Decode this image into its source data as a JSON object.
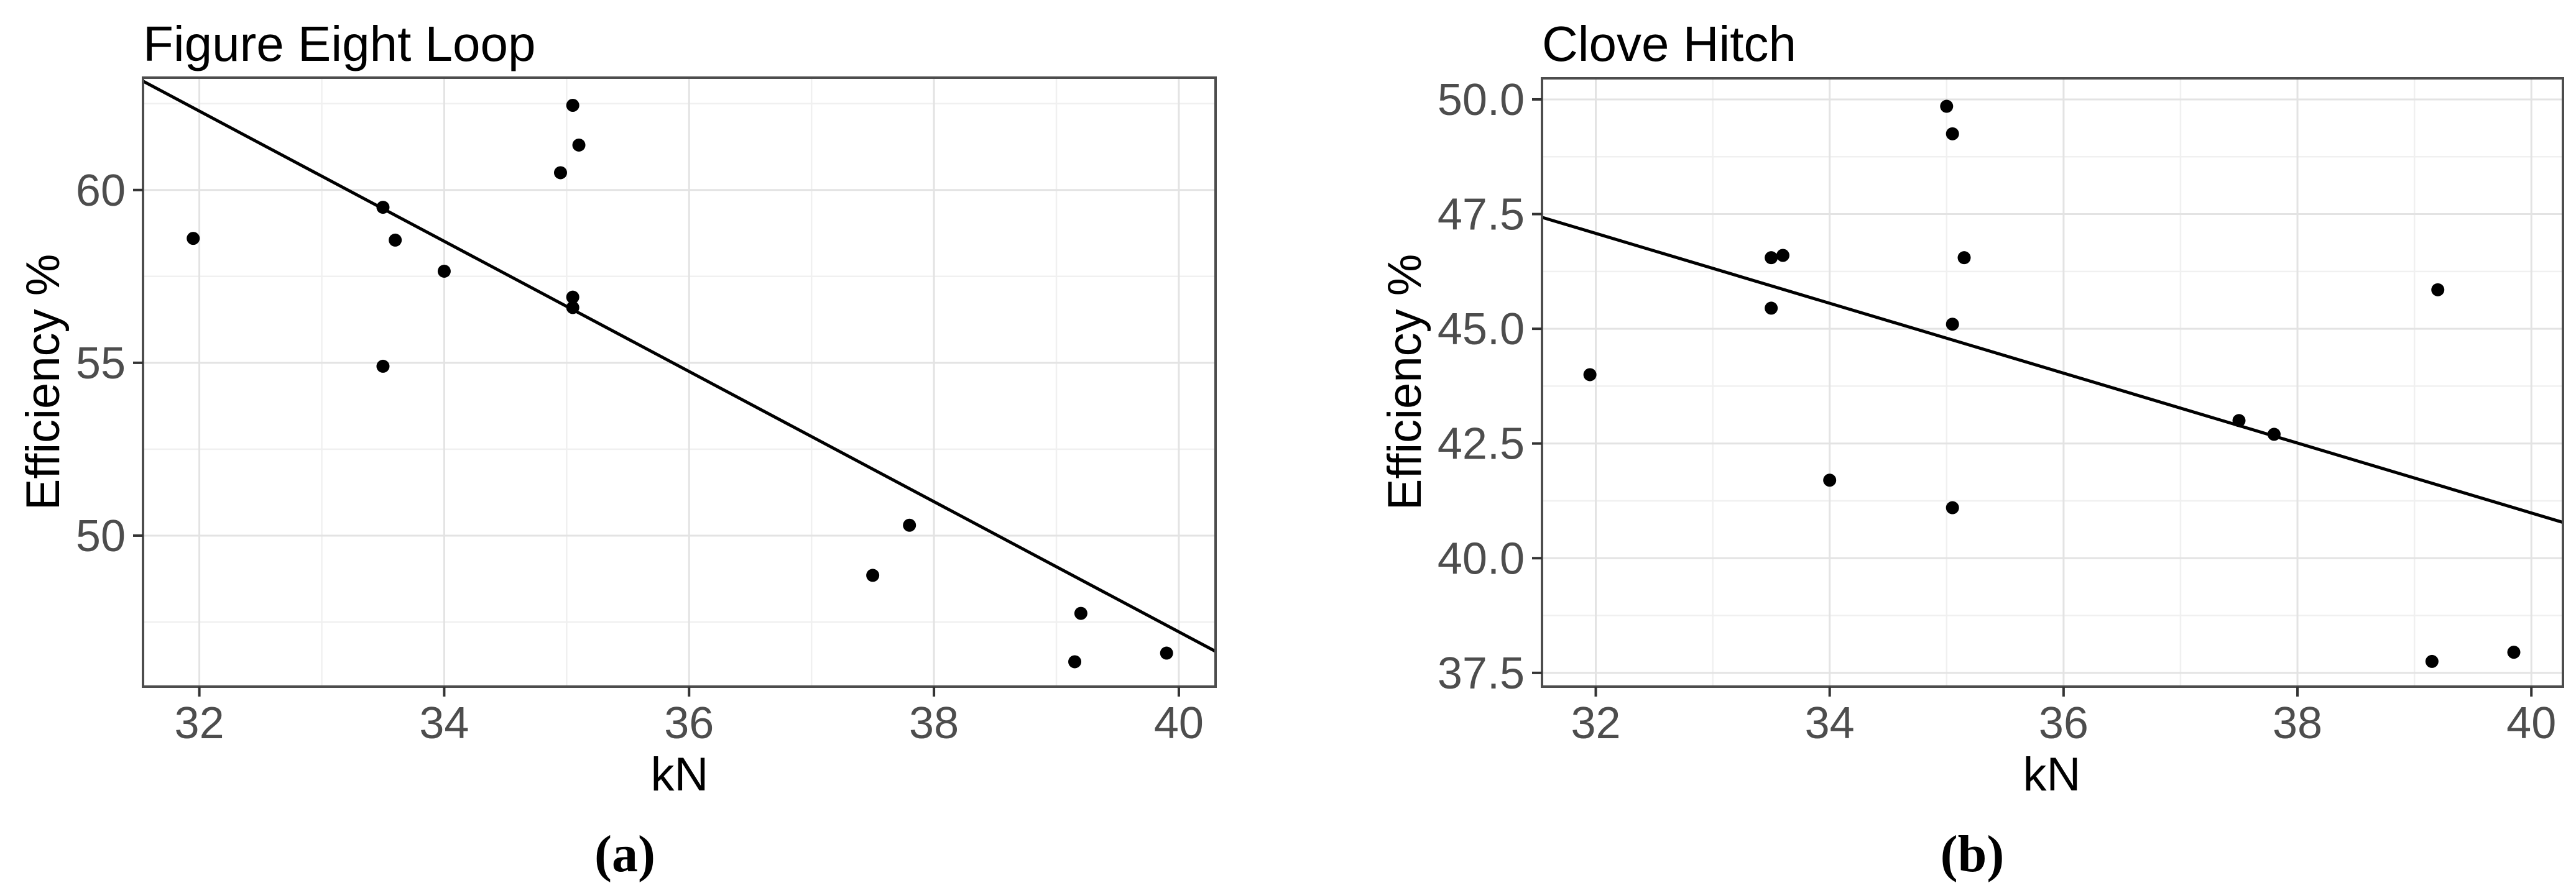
{
  "figure": {
    "background_color": "#ffffff",
    "colors": {
      "point": "#000000",
      "trend_line": "#000000",
      "panel_border": "#4d4d4d",
      "major_grid": "#e3e3e3",
      "minor_grid": "#f0f0f0",
      "tick_mark": "#333333",
      "tick_label": "#4d4d4d",
      "text": "#000000"
    }
  },
  "chart_data": [
    {
      "id": "a",
      "type": "scatter",
      "title": "Figure Eight Loop",
      "xlabel": "kN",
      "ylabel": "Efficiency %",
      "caption": "(a)",
      "xlim": [
        31.54,
        40.3
      ],
      "ylim": [
        45.63,
        63.25
      ],
      "grid": "major+minor",
      "legend": "none",
      "x_ticks": [
        {
          "v": 32,
          "label": "32"
        },
        {
          "v": 34,
          "label": "34"
        },
        {
          "v": 36,
          "label": "36"
        },
        {
          "v": 38,
          "label": "38"
        },
        {
          "v": 40,
          "label": "40"
        }
      ],
      "y_ticks": [
        {
          "v": 50,
          "label": "50"
        },
        {
          "v": 55,
          "label": "55"
        },
        {
          "v": 60,
          "label": "60"
        }
      ],
      "points": [
        [
          31.95,
          58.6
        ],
        [
          33.5,
          59.5
        ],
        [
          33.6,
          58.55
        ],
        [
          33.5,
          54.9
        ],
        [
          34.0,
          57.65
        ],
        [
          34.95,
          60.5
        ],
        [
          35.05,
          62.45
        ],
        [
          35.1,
          61.3
        ],
        [
          35.05,
          56.9
        ],
        [
          35.05,
          56.6
        ],
        [
          37.5,
          48.85
        ],
        [
          37.8,
          50.3
        ],
        [
          39.2,
          47.75
        ],
        [
          39.15,
          46.35
        ],
        [
          39.9,
          46.6
        ]
      ],
      "trend_line": {
        "x1": 31.54,
        "y1": 63.15,
        "x2": 40.3,
        "y2": 46.65
      }
    },
    {
      "id": "b",
      "type": "scatter",
      "title": "Clove Hitch",
      "xlabel": "kN",
      "ylabel": "Efficiency %",
      "caption": "(b)",
      "xlim": [
        31.54,
        40.27
      ],
      "ylim": [
        37.2,
        50.46
      ],
      "grid": "major+minor",
      "legend": "none",
      "x_ticks": [
        {
          "v": 32,
          "label": "32"
        },
        {
          "v": 34,
          "label": "34"
        },
        {
          "v": 36,
          "label": "36"
        },
        {
          "v": 38,
          "label": "38"
        },
        {
          "v": 40,
          "label": "40"
        }
      ],
      "y_ticks": [
        {
          "v": 37.5,
          "label": "37.5"
        },
        {
          "v": 40.0,
          "label": "40.0"
        },
        {
          "v": 42.5,
          "label": "42.5"
        },
        {
          "v": 45.0,
          "label": "45.0"
        },
        {
          "v": 47.5,
          "label": "47.5"
        },
        {
          "v": 50.0,
          "label": "50.0"
        }
      ],
      "points": [
        [
          31.95,
          44.0
        ],
        [
          33.5,
          46.55
        ],
        [
          33.6,
          46.6
        ],
        [
          33.5,
          45.45
        ],
        [
          34.0,
          41.7
        ],
        [
          35.0,
          49.85
        ],
        [
          35.05,
          49.25
        ],
        [
          35.15,
          46.55
        ],
        [
          35.05,
          45.1
        ],
        [
          35.05,
          41.1
        ],
        [
          37.5,
          43.0
        ],
        [
          37.8,
          42.7
        ],
        [
          39.2,
          45.85
        ],
        [
          39.15,
          37.75
        ],
        [
          39.85,
          37.95
        ]
      ],
      "trend_line": {
        "x1": 31.54,
        "y1": 47.43,
        "x2": 40.27,
        "y2": 40.78
      }
    }
  ]
}
